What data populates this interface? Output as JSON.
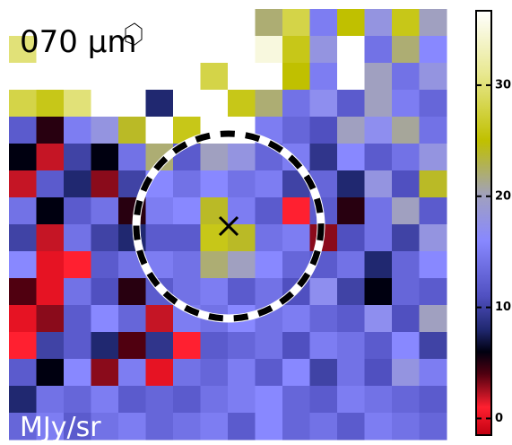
{
  "image": {
    "label_wavelength": "070 μm",
    "label_unit": "MJy/sr",
    "pixels": [
      [
        37,
        37,
        37,
        37,
        37,
        37,
        37,
        37,
        37,
        22,
        28,
        15,
        25,
        18,
        26,
        20
      ],
      [
        30,
        37,
        37,
        37,
        37,
        37,
        37,
        37,
        37,
        35,
        26,
        18,
        37,
        14,
        22,
        16
      ],
      [
        37,
        37,
        37,
        37,
        37,
        37,
        37,
        28,
        37,
        37,
        25,
        15,
        37,
        20,
        14,
        18
      ],
      [
        28,
        26,
        30,
        37,
        37,
        8,
        37,
        37,
        26,
        22,
        14,
        17,
        12,
        20,
        15,
        13
      ],
      [
        12,
        5,
        15,
        18,
        24,
        37,
        26,
        37,
        37,
        15,
        13,
        11,
        20,
        17,
        21,
        14
      ],
      [
        6,
        2,
        10,
        6,
        14,
        22,
        12,
        20,
        18,
        13,
        15,
        9,
        16,
        12,
        14,
        18
      ],
      [
        2,
        12,
        8,
        3,
        10,
        16,
        14,
        16,
        14,
        15,
        10,
        13,
        8,
        18,
        11,
        24
      ],
      [
        14,
        6,
        12,
        14,
        5,
        15,
        16,
        24,
        15,
        12,
        1,
        12,
        5,
        14,
        20,
        12
      ],
      [
        10,
        2,
        14,
        10,
        8,
        12,
        12,
        26,
        24,
        14,
        15,
        3,
        11,
        14,
        10,
        18
      ],
      [
        16,
        0,
        1,
        12,
        14,
        15,
        14,
        22,
        20,
        16,
        13,
        12,
        14,
        8,
        13,
        16
      ],
      [
        4,
        0,
        14,
        11,
        5,
        12,
        14,
        15,
        12,
        14,
        11,
        17,
        10,
        6,
        13,
        12
      ],
      [
        0,
        3,
        12,
        16,
        13,
        2,
        15,
        14,
        16,
        14,
        15,
        13,
        12,
        17,
        11,
        20
      ],
      [
        1,
        10,
        12,
        8,
        4,
        9,
        1,
        12,
        13,
        14,
        11,
        15,
        14,
        12,
        16,
        10
      ],
      [
        12,
        6,
        16,
        3,
        15,
        0,
        14,
        13,
        15,
        12,
        16,
        10,
        14,
        11,
        18,
        15
      ],
      [
        8,
        14,
        13,
        15,
        12,
        13,
        12,
        14,
        15,
        16,
        13,
        12,
        15,
        14,
        13,
        12
      ],
      [
        13,
        15,
        12,
        14,
        15,
        13,
        14,
        15,
        12,
        16,
        13,
        14,
        12,
        15,
        14,
        13
      ]
    ]
  },
  "colorbar": {
    "lim": [
      -1.5,
      36.7
    ],
    "ticks": [
      0,
      10,
      20,
      30
    ],
    "colormap": [
      {
        "value": -1.5,
        "color": "#c00010"
      },
      {
        "value": 1,
        "color": "#ff2030"
      },
      {
        "value": 4,
        "color": "#500010"
      },
      {
        "value": 6,
        "color": "#000010"
      },
      {
        "value": 8,
        "color": "#202870"
      },
      {
        "value": 11,
        "color": "#5050c0"
      },
      {
        "value": 16,
        "color": "#8888ff"
      },
      {
        "value": 20,
        "color": "#a0a0c0"
      },
      {
        "value": 25,
        "color": "#c0c000"
      },
      {
        "value": 31,
        "color": "#e8e890"
      },
      {
        "value": 36.7,
        "color": "#ffffff"
      }
    ]
  }
}
